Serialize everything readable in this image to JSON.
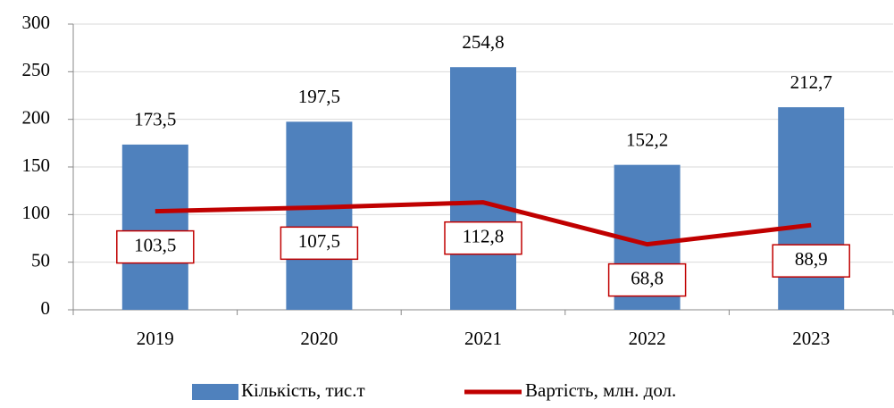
{
  "chart_data": {
    "type": "bar",
    "categories": [
      "2019",
      "2020",
      "2021",
      "2022",
      "2023"
    ],
    "series": [
      {
        "name": "Кількість, тис.т",
        "type": "bar",
        "color": "#4f81bd",
        "values": [
          173.5,
          197.5,
          254.8,
          152.2,
          212.7
        ],
        "value_labels": [
          "173,5",
          "197,5",
          "254,8",
          "152,2",
          "212,7"
        ]
      },
      {
        "name": "Вартість, млн. дол.",
        "type": "line",
        "color": "#c00000",
        "values": [
          103.5,
          107.5,
          112.8,
          68.8,
          88.9
        ],
        "value_labels": [
          "103,5",
          "107,5",
          "112,8",
          "68,8",
          "88,9"
        ]
      }
    ],
    "ylim": [
      0,
      300
    ],
    "yticks": [
      0,
      50,
      100,
      150,
      200,
      250,
      300
    ],
    "grid": true,
    "legend": "bottom"
  }
}
